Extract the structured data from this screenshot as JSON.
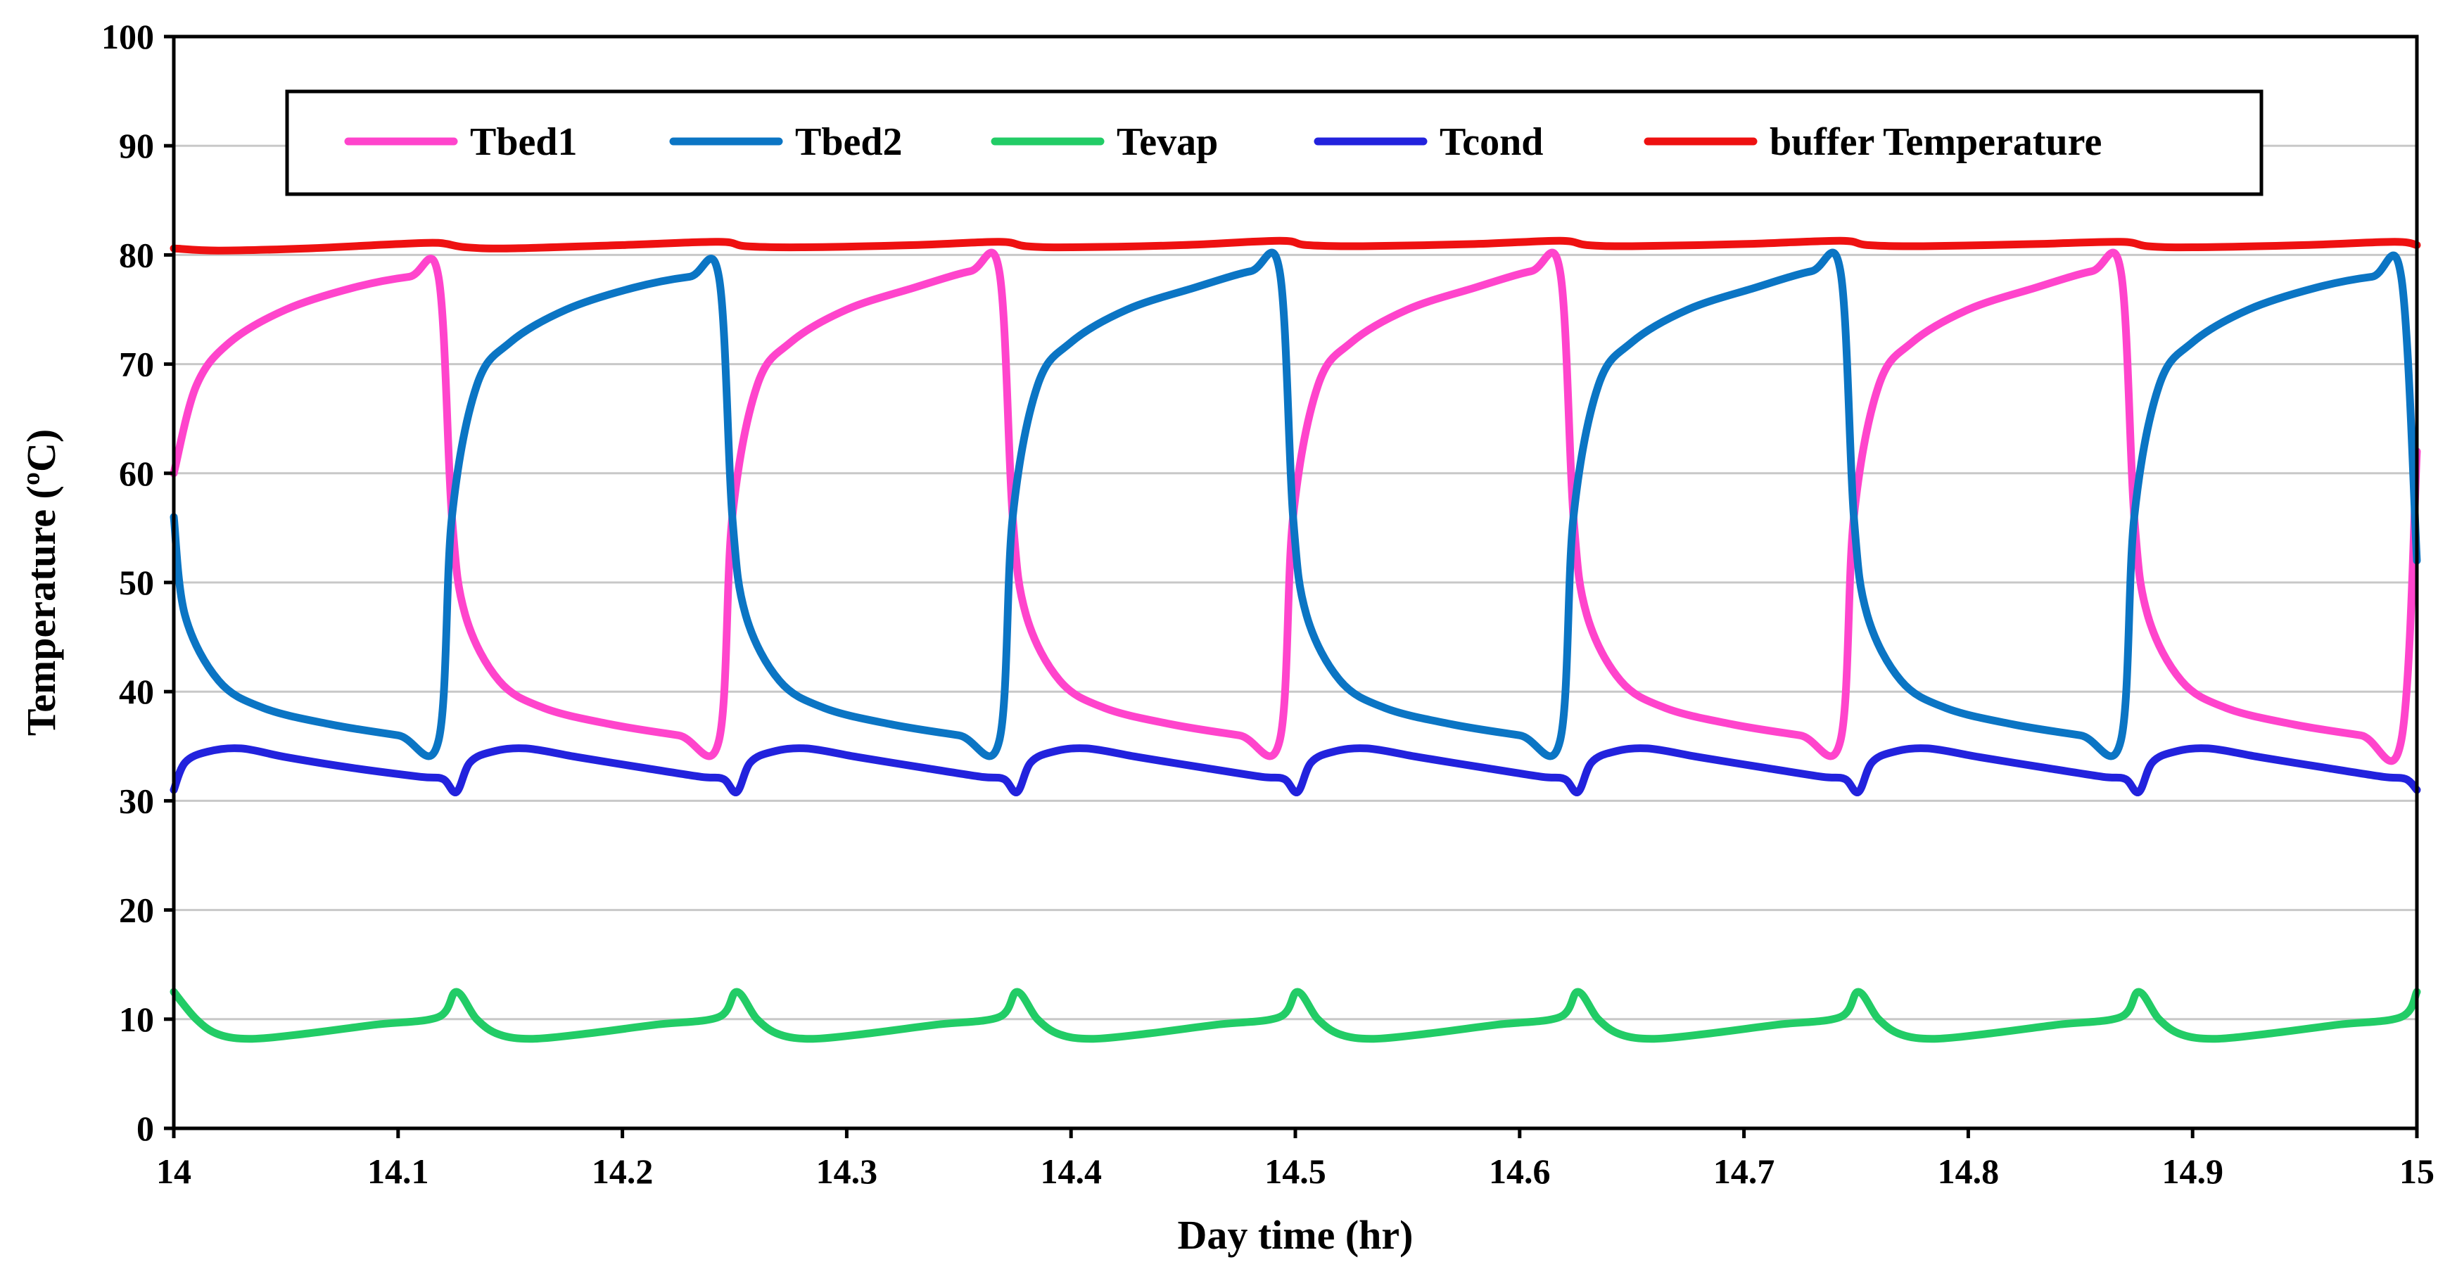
{
  "chart_data": {
    "type": "line",
    "title": "",
    "xlabel": "Day time (hr)",
    "ylabel": "Temperature (ºC)",
    "xlim": [
      14,
      15
    ],
    "ylim": [
      0,
      100
    ],
    "x_ticks": [
      "14",
      "14.1",
      "14.2",
      "14.3",
      "14.4",
      "14.5",
      "14.6",
      "14.7",
      "14.8",
      "14.9",
      "15"
    ],
    "y_ticks": [
      "0",
      "10",
      "20",
      "30",
      "40",
      "50",
      "60",
      "70",
      "80",
      "90",
      "100"
    ],
    "grid": "horizontal",
    "legend_position": "top",
    "series": [
      {
        "name": "Tbed1",
        "color": "#ff44cc",
        "x": [
          14.0,
          14.01,
          14.025,
          14.05,
          14.08,
          14.105,
          14.118,
          14.124,
          14.13,
          14.145,
          14.165,
          14.195,
          14.225,
          14.243,
          14.249,
          14.26,
          14.275,
          14.3,
          14.33,
          14.355,
          14.368,
          14.374,
          14.38,
          14.395,
          14.415,
          14.445,
          14.475,
          14.493,
          14.499,
          14.51,
          14.525,
          14.55,
          14.58,
          14.605,
          14.618,
          14.624,
          14.63,
          14.645,
          14.665,
          14.695,
          14.725,
          14.743,
          14.749,
          14.76,
          14.775,
          14.8,
          14.83,
          14.855,
          14.868,
          14.874,
          14.88,
          14.895,
          14.915,
          14.945,
          14.975,
          14.993,
          15.0
        ],
        "y": [
          60,
          68,
          72,
          75,
          77,
          78,
          78,
          56,
          47,
          41,
          38.5,
          37,
          36,
          35.5,
          56,
          68,
          72,
          75,
          77,
          78.5,
          78.5,
          56,
          47,
          41,
          38.5,
          37,
          36,
          35.5,
          56,
          68,
          72,
          75,
          77,
          78.5,
          78.5,
          56,
          47,
          41,
          38.5,
          37,
          36,
          35.5,
          56,
          68,
          72,
          75,
          77,
          78.5,
          78.5,
          56,
          47,
          41,
          38.5,
          37,
          36,
          35.5,
          62
        ]
      },
      {
        "name": "Tbed2",
        "color": "#0b75c4",
        "x": [
          14.0,
          14.005,
          14.02,
          14.04,
          14.07,
          14.1,
          14.118,
          14.124,
          14.135,
          14.15,
          14.175,
          14.205,
          14.23,
          14.243,
          14.249,
          14.255,
          14.27,
          14.29,
          14.32,
          14.35,
          14.368,
          14.374,
          14.385,
          14.4,
          14.425,
          14.455,
          14.48,
          14.493,
          14.499,
          14.505,
          14.52,
          14.54,
          14.57,
          14.6,
          14.618,
          14.624,
          14.635,
          14.65,
          14.675,
          14.705,
          14.73,
          14.743,
          14.749,
          14.755,
          14.77,
          14.79,
          14.82,
          14.85,
          14.868,
          14.874,
          14.885,
          14.9,
          14.925,
          14.955,
          14.98,
          14.993,
          15.0
        ],
        "y": [
          56,
          47,
          41,
          38.5,
          37,
          36,
          35.5,
          56,
          68,
          72,
          75,
          77,
          78,
          78,
          56,
          47,
          41,
          38.5,
          37,
          36,
          35.5,
          56,
          68,
          72,
          75,
          77,
          78.5,
          78.5,
          56,
          47,
          41,
          38.5,
          37,
          36,
          35.5,
          56,
          68,
          72,
          75,
          77,
          78.5,
          78.5,
          56,
          47,
          41,
          38.5,
          37,
          36,
          35.5,
          56,
          68,
          72,
          75,
          77,
          78,
          78,
          52
        ]
      },
      {
        "name": "Tevap",
        "color": "#22cc66",
        "x": [
          14.0,
          14.01,
          14.02,
          14.035,
          14.06,
          14.09,
          14.118,
          14.126,
          14.135,
          14.145,
          14.16,
          14.185,
          14.215,
          14.243,
          14.251,
          14.26,
          14.27,
          14.285,
          14.31,
          14.34,
          14.368,
          14.376,
          14.385,
          14.395,
          14.41,
          14.435,
          14.465,
          14.493,
          14.501,
          14.51,
          14.52,
          14.535,
          14.56,
          14.59,
          14.618,
          14.626,
          14.635,
          14.645,
          14.66,
          14.685,
          14.715,
          14.743,
          14.751,
          14.76,
          14.77,
          14.785,
          14.81,
          14.84,
          14.868,
          14.876,
          14.885,
          14.895,
          14.91,
          14.935,
          14.965,
          14.993,
          15.0
        ],
        "y": [
          12.5,
          10,
          8.6,
          8.2,
          8.7,
          9.5,
          10.2,
          12.5,
          10,
          8.6,
          8.2,
          8.7,
          9.5,
          10.2,
          12.5,
          10,
          8.6,
          8.2,
          8.7,
          9.5,
          10.2,
          12.5,
          10,
          8.6,
          8.2,
          8.7,
          9.5,
          10.2,
          12.5,
          10,
          8.6,
          8.2,
          8.7,
          9.5,
          10.2,
          12.5,
          10,
          8.6,
          8.2,
          8.7,
          9.5,
          10.2,
          12.5,
          10,
          8.6,
          8.2,
          8.7,
          9.5,
          10.2,
          12.5,
          10,
          8.6,
          8.2,
          8.7,
          9.5,
          10.2,
          12.5
        ]
      },
      {
        "name": "Tcond",
        "color": "#2222dd",
        "x": [
          14.0,
          14.005,
          14.015,
          14.03,
          14.05,
          14.08,
          14.11,
          14.12,
          14.126,
          14.132,
          14.142,
          14.157,
          14.18,
          14.21,
          14.235,
          14.245,
          14.251,
          14.257,
          14.267,
          14.282,
          14.305,
          14.335,
          14.36,
          14.37,
          14.376,
          14.382,
          14.392,
          14.407,
          14.43,
          14.46,
          14.485,
          14.495,
          14.501,
          14.507,
          14.517,
          14.532,
          14.555,
          14.585,
          14.61,
          14.62,
          14.626,
          14.632,
          14.642,
          14.657,
          14.68,
          14.71,
          14.735,
          14.745,
          14.751,
          14.757,
          14.767,
          14.782,
          14.805,
          14.835,
          14.86,
          14.87,
          14.876,
          14.882,
          14.892,
          14.907,
          14.93,
          14.96,
          14.985,
          14.995,
          15.0
        ],
        "y": [
          31,
          33.5,
          34.5,
          34.8,
          34,
          33,
          32.2,
          32,
          30.8,
          33.5,
          34.5,
          34.8,
          34,
          33,
          32.2,
          32,
          30.8,
          33.5,
          34.5,
          34.8,
          34,
          33,
          32.2,
          32,
          30.8,
          33.5,
          34.5,
          34.8,
          34,
          33,
          32.2,
          32,
          30.8,
          33.5,
          34.5,
          34.8,
          34,
          33,
          32.2,
          32,
          30.8,
          33.5,
          34.5,
          34.8,
          34,
          33,
          32.2,
          32,
          30.8,
          33.5,
          34.5,
          34.8,
          34,
          33,
          32.2,
          32,
          30.8,
          33.5,
          34.5,
          34.8,
          34,
          33,
          32.2,
          32,
          31
        ]
      },
      {
        "name": "buffer Temperature",
        "color": "#ee1111",
        "x": [
          14.0,
          14.02,
          14.06,
          14.1,
          14.118,
          14.13,
          14.15,
          14.2,
          14.243,
          14.255,
          14.28,
          14.33,
          14.368,
          14.38,
          14.4,
          14.45,
          14.493,
          14.505,
          14.53,
          14.58,
          14.618,
          14.63,
          14.65,
          14.7,
          14.743,
          14.755,
          14.78,
          14.83,
          14.868,
          14.88,
          14.9,
          14.95,
          14.99,
          15.0
        ],
        "y": [
          80.6,
          80.4,
          80.6,
          81,
          81.1,
          80.7,
          80.6,
          80.9,
          81.2,
          80.8,
          80.7,
          80.9,
          81.2,
          80.8,
          80.7,
          80.9,
          81.3,
          80.9,
          80.8,
          81,
          81.3,
          80.9,
          80.8,
          81,
          81.3,
          80.9,
          80.8,
          81,
          81.2,
          80.8,
          80.7,
          80.9,
          81.2,
          80.9
        ]
      }
    ]
  }
}
